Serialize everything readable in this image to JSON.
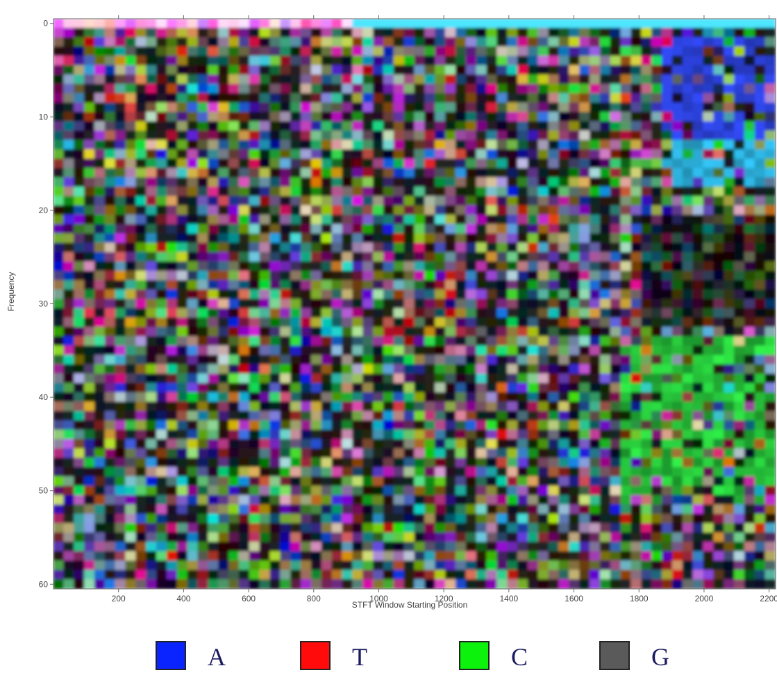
{
  "chart_data": {
    "type": "heatmap",
    "xlabel": "STFT Window Starting Position",
    "ylabel": "Frequency",
    "xlim": [
      0,
      2220
    ],
    "ylim": [
      -0.5,
      60.5
    ],
    "xticks": [
      200,
      400,
      600,
      800,
      1000,
      1200,
      1400,
      1600,
      1800,
      2000,
      2200
    ],
    "yticks": [
      0,
      10,
      20,
      30,
      40,
      50,
      60
    ],
    "y_inverted": true,
    "legend": [
      {
        "name": "A",
        "color": "#0a24ff"
      },
      {
        "name": "T",
        "color": "#ff0b0b"
      },
      {
        "name": "C",
        "color": "#0cf20c"
      },
      {
        "name": "G",
        "color": "#5a5a5a"
      }
    ]
  }
}
